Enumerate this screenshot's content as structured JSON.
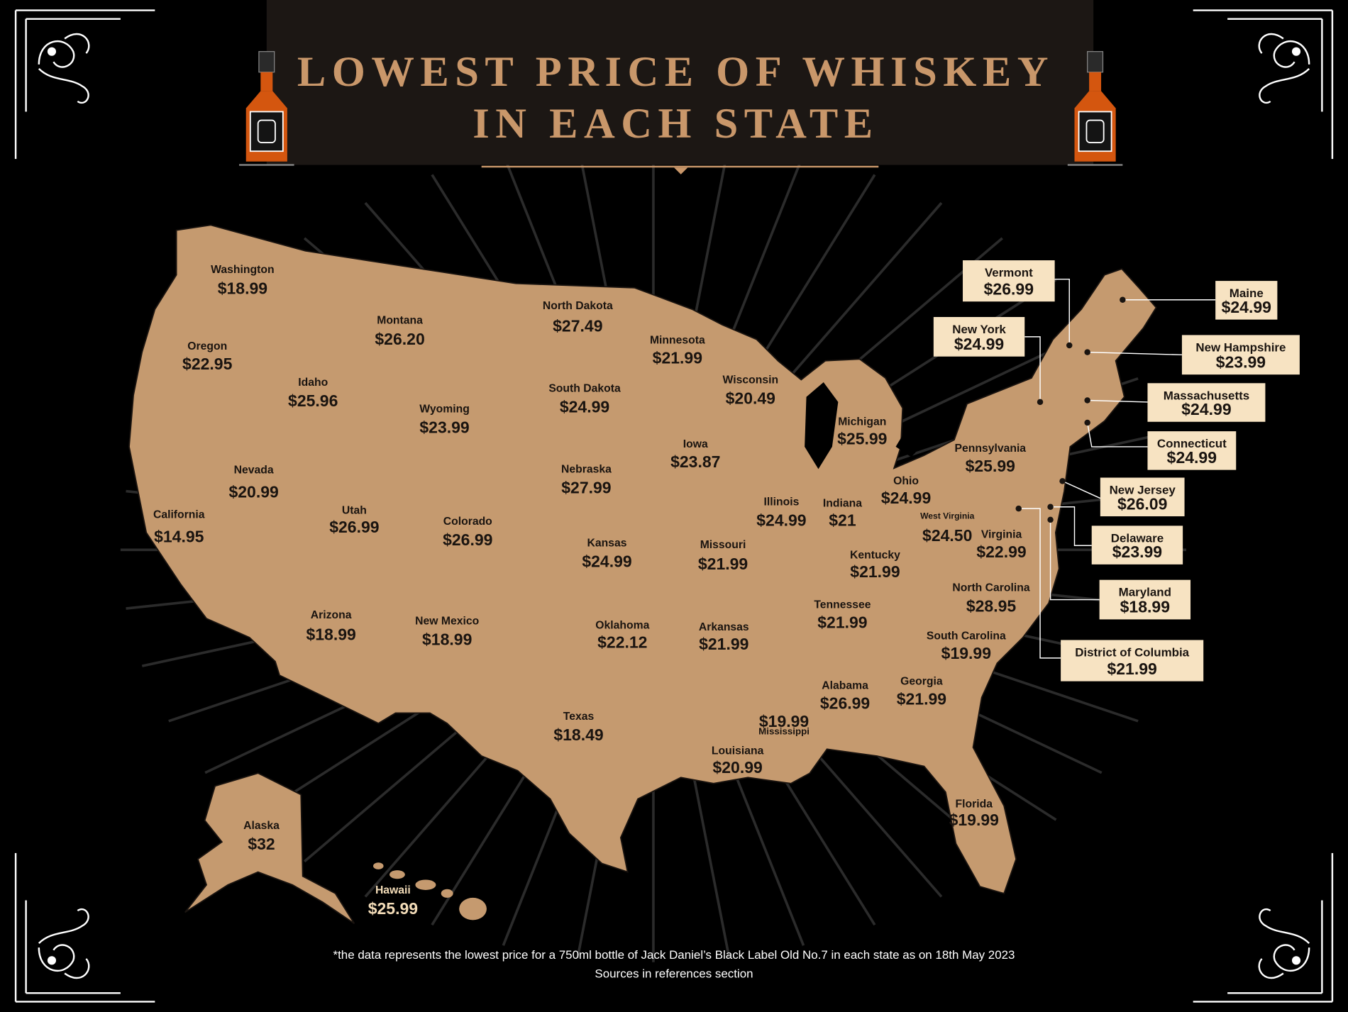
{
  "title_lines": [
    "LOWEST PRICE OF WHISKEY",
    "IN EACH STATE"
  ],
  "states": [
    {
      "name": "Washington",
      "price": "$18.99"
    },
    {
      "name": "Oregon",
      "price": "$22.95"
    },
    {
      "name": "California",
      "price": "$14.95"
    },
    {
      "name": "Nevada",
      "price": "$20.99"
    },
    {
      "name": "Idaho",
      "price": "$25.96"
    },
    {
      "name": "Montana",
      "price": "$26.20"
    },
    {
      "name": "Wyoming",
      "price": "$23.99"
    },
    {
      "name": "Utah",
      "price": "$26.99"
    },
    {
      "name": "Arizona",
      "price": "$18.99"
    },
    {
      "name": "Colorado",
      "price": "$26.99"
    },
    {
      "name": "New Mexico",
      "price": "$18.99"
    },
    {
      "name": "North Dakota",
      "price": "$27.49"
    },
    {
      "name": "South Dakota",
      "price": "$24.99"
    },
    {
      "name": "Nebraska",
      "price": "$27.99"
    },
    {
      "name": "Kansas",
      "price": "$24.99"
    },
    {
      "name": "Oklahoma",
      "price": "$22.12"
    },
    {
      "name": "Texas",
      "price": "$18.49"
    },
    {
      "name": "Minnesota",
      "price": "$21.99"
    },
    {
      "name": "Iowa",
      "price": "$23.87"
    },
    {
      "name": "Missouri",
      "price": "$21.99"
    },
    {
      "name": "Arkansas",
      "price": "$21.99"
    },
    {
      "name": "Louisiana",
      "price": "$20.99"
    },
    {
      "name": "Wisconsin",
      "price": "$20.49"
    },
    {
      "name": "Illinois",
      "price": "$24.99"
    },
    {
      "name": "Mississippi",
      "price": "$19.99"
    },
    {
      "name": "Michigan",
      "price": "$25.99"
    },
    {
      "name": "Indiana",
      "price": "$21"
    },
    {
      "name": "Ohio",
      "price": "$24.99"
    },
    {
      "name": "Kentucky",
      "price": "$21.99"
    },
    {
      "name": "Tennessee",
      "price": "$21.99"
    },
    {
      "name": "Alabama",
      "price": "$26.99"
    },
    {
      "name": "Georgia",
      "price": "$21.99"
    },
    {
      "name": "Florida",
      "price": "$19.99"
    },
    {
      "name": "South Carolina",
      "price": "$19.99"
    },
    {
      "name": "North Carolina",
      "price": "$28.95"
    },
    {
      "name": "Virginia",
      "price": "$22.99"
    },
    {
      "name": "West Virginia",
      "price": "$24.50"
    },
    {
      "name": "Pennsylvania",
      "price": "$25.99"
    },
    {
      "name": "Alaska",
      "price": "$32"
    },
    {
      "name": "Hawaii",
      "price": "$25.99"
    }
  ],
  "callouts": [
    {
      "name": "Vermont",
      "price": "$26.99"
    },
    {
      "name": "Maine",
      "price": "$24.99"
    },
    {
      "name": "New York",
      "price": "$24.99"
    },
    {
      "name": "New Hampshire",
      "price": "$23.99"
    },
    {
      "name": "Massachusetts",
      "price": "$24.99"
    },
    {
      "name": "Connecticut",
      "price": "$24.99"
    },
    {
      "name": "New Jersey",
      "price": "$26.09"
    },
    {
      "name": "Delaware",
      "price": "$23.99"
    },
    {
      "name": "Maryland",
      "price": "$18.99"
    },
    {
      "name": "District of Columbia",
      "price": "$21.99"
    }
  ],
  "footnote": [
    "*the data represents the lowest price for a 750ml bottle of Jack Daniel’s Black Label Old No.7 in each state as on 18th May 2023",
    "Sources in references section"
  ]
}
